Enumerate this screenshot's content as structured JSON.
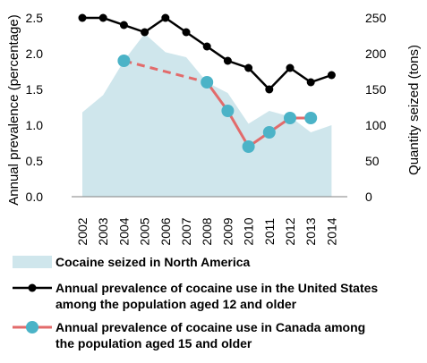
{
  "chart_data": {
    "type": "line",
    "categories": [
      "2002",
      "2003",
      "2004",
      "2005",
      "2006",
      "2007",
      "2008",
      "2009",
      "2010",
      "2011",
      "2012",
      "2013",
      "2014"
    ],
    "y_left": {
      "label": "Annual prevalence (percentage)",
      "ylim": [
        0,
        2.5
      ],
      "ticks": [
        "0.0",
        "0.5",
        "1.0",
        "1.5",
        "2.0",
        "2.5"
      ]
    },
    "y_right": {
      "label": "Quantity seized (tons)",
      "ylim": [
        0,
        250
      ],
      "ticks": [
        "0",
        "50",
        "100",
        "150",
        "200",
        "250"
      ]
    },
    "series": [
      {
        "name": "Cocaine seized in North America",
        "type": "area",
        "axis": "right",
        "color": "#cfe6ec",
        "values": [
          118,
          142,
          190,
          228,
          202,
          195,
          160,
          145,
          102,
          120,
          112,
          90,
          100
        ]
      },
      {
        "name": "Annual prevalence of cocaine use in the United States among the population aged 12 and older",
        "legend_lines": [
          "Annual prevalence of cocaine use in the United States",
          "among the population aged 12 and older"
        ],
        "type": "line",
        "axis": "left",
        "color": "#000000",
        "values": [
          2.5,
          2.5,
          2.4,
          2.3,
          2.5,
          2.3,
          2.1,
          1.9,
          1.8,
          1.5,
          1.8,
          1.6,
          1.7
        ]
      },
      {
        "name": "Annual prevalence of cocaine use in Canada among the population aged 15 and older",
        "legend_lines": [
          "Annual prevalence of cocaine use in Canada among",
          "the population aged 15 and older"
        ],
        "type": "line",
        "axis": "left",
        "color": "#e26b6b",
        "marker_color": "#4bb3c7",
        "values": [
          null,
          null,
          1.9,
          null,
          null,
          null,
          1.6,
          1.2,
          0.7,
          0.9,
          1.1,
          1.1,
          null
        ],
        "dashed_gap": [
          2,
          6
        ]
      }
    ],
    "grid": false,
    "legend_position": "bottom"
  }
}
